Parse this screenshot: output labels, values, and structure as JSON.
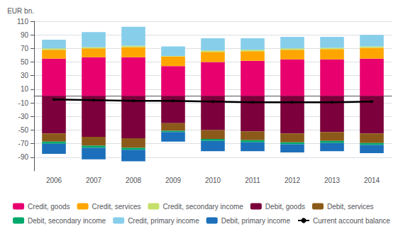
{
  "chart_data": {
    "type": "bar",
    "stacked": true,
    "ylabel": "EUR bn.",
    "categories": [
      "2006",
      "2007",
      "2008",
      "2009",
      "2010",
      "2011",
      "2012",
      "2013",
      "2014"
    ],
    "ylim": [
      -110,
      110
    ],
    "yticks": [
      -90,
      -70,
      -50,
      -30,
      -10,
      10,
      30,
      50,
      70,
      90,
      110
    ],
    "grid": true,
    "legend": "bottom",
    "series": [
      {
        "name": "Credit, goods",
        "color": "#e8006e",
        "values": [
          55,
          57,
          57,
          44,
          50,
          52,
          54,
          54,
          55
        ]
      },
      {
        "name": "Credit, services",
        "color": "#ffa500",
        "values": [
          13,
          13,
          15,
          14,
          15,
          14,
          14,
          15,
          16
        ]
      },
      {
        "name": "Credit, secondary income",
        "color": "#c5e069",
        "values": [
          2,
          2,
          2,
          1,
          2,
          2,
          2,
          2,
          2
        ]
      },
      {
        "name": "Debit, goods",
        "color": "#7b003b",
        "values": [
          -55,
          -60,
          -62,
          -40,
          -50,
          -52,
          -55,
          -53,
          -55
        ]
      },
      {
        "name": "Debit, services",
        "color": "#8b5a1a",
        "values": [
          -12,
          -13,
          -14,
          -11,
          -13,
          -13,
          -13,
          -13,
          -14
        ]
      },
      {
        "name": "Debit, secondary income",
        "color": "#00a86b",
        "values": [
          -3,
          -3,
          -3,
          -2,
          -3,
          -3,
          -3,
          -3,
          -3
        ]
      },
      {
        "name": "Credit, primary income",
        "color": "#87ceeb",
        "values": [
          13,
          22,
          28,
          14,
          18,
          17,
          17,
          16,
          17
        ]
      },
      {
        "name": "Debit, primary income",
        "color": "#1c6fba",
        "values": [
          -15,
          -17,
          -17,
          -14,
          -15,
          -13,
          -12,
          -12,
          -12
        ]
      },
      {
        "name": "Current account balance",
        "color": "#000000",
        "type": "line",
        "values": [
          -5,
          -6,
          -7,
          -7,
          -8,
          -9,
          -9,
          -9,
          -8
        ]
      }
    ]
  }
}
